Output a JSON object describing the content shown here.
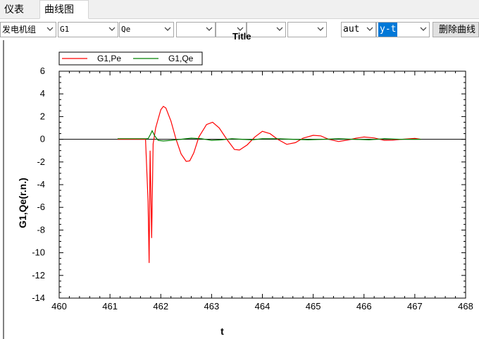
{
  "tabs": [
    {
      "label": "仪表"
    },
    {
      "label": "曲线图"
    }
  ],
  "toolbar": {
    "generator_combo": "发电机组",
    "unit_combo": "G1",
    "quantity_combo": "Qe",
    "empty_combo_count_note": "",
    "mode_combo": "aut",
    "axis_combo": "y-t",
    "delete_button": "删除曲线"
  },
  "chart_title": "Title",
  "chart_data": {
    "type": "line",
    "title": "Title",
    "xlabel": "t",
    "ylabel": "G1,Qe(r.n.)",
    "xlim": [
      460,
      468
    ],
    "ylim": [
      -14,
      6
    ],
    "xticks": [
      "460",
      "461",
      "462",
      "463",
      "464",
      "465",
      "466",
      "467",
      "468"
    ],
    "yticks": [
      "6",
      "4",
      "2",
      "0",
      "-2",
      "-4",
      "-6",
      "-8",
      "-10",
      "-12",
      "-14"
    ],
    "legend_position": "top-left",
    "grid": false,
    "series": [
      {
        "name": "G1,Pe",
        "color": "#ff0000",
        "x": [
          461.15,
          461.7,
          461.75,
          461.77,
          461.79,
          461.82,
          461.85,
          461.9,
          461.95,
          462.0,
          462.05,
          462.1,
          462.2,
          462.3,
          462.4,
          462.5,
          462.57,
          462.65,
          462.75,
          462.9,
          463.02,
          463.15,
          463.3,
          463.45,
          463.55,
          463.7,
          463.85,
          464.0,
          464.15,
          464.3,
          464.48,
          464.65,
          464.8,
          465.0,
          465.15,
          465.3,
          465.5,
          465.7,
          465.85,
          466.0,
          466.2,
          466.4,
          466.55,
          466.75,
          467.0,
          467.12
        ],
        "y": [
          0.0,
          0.0,
          -5.5,
          -10.9,
          -1.0,
          -8.7,
          -0.4,
          1.0,
          1.8,
          2.6,
          2.9,
          2.75,
          1.6,
          0.0,
          -1.3,
          -1.95,
          -1.9,
          -1.2,
          0.2,
          1.3,
          1.5,
          1.0,
          0.0,
          -0.9,
          -0.95,
          -0.5,
          0.2,
          0.7,
          0.5,
          0.0,
          -0.45,
          -0.3,
          0.1,
          0.35,
          0.3,
          0.0,
          -0.2,
          -0.05,
          0.1,
          0.2,
          0.12,
          -0.1,
          -0.08,
          0.0,
          0.08,
          0.0
        ]
      },
      {
        "name": "G1,Qe",
        "color": "#008000",
        "x": [
          461.15,
          461.75,
          461.8,
          461.83,
          461.88,
          461.95,
          462.05,
          462.2,
          462.4,
          462.6,
          462.8,
          463.0,
          463.2,
          463.4,
          463.6,
          463.8,
          464.0,
          464.3,
          464.6,
          464.9,
          465.2,
          465.5,
          465.8,
          466.1,
          466.4,
          466.7,
          467.12
        ],
        "y": [
          0.05,
          0.05,
          0.45,
          0.75,
          0.3,
          -0.1,
          -0.15,
          -0.1,
          0.0,
          0.1,
          0.05,
          -0.1,
          -0.05,
          0.05,
          0.0,
          -0.05,
          0.05,
          0.05,
          0.0,
          -0.05,
          0.0,
          0.05,
          0.0,
          -0.05,
          0.05,
          0.0,
          0.0
        ]
      }
    ]
  }
}
